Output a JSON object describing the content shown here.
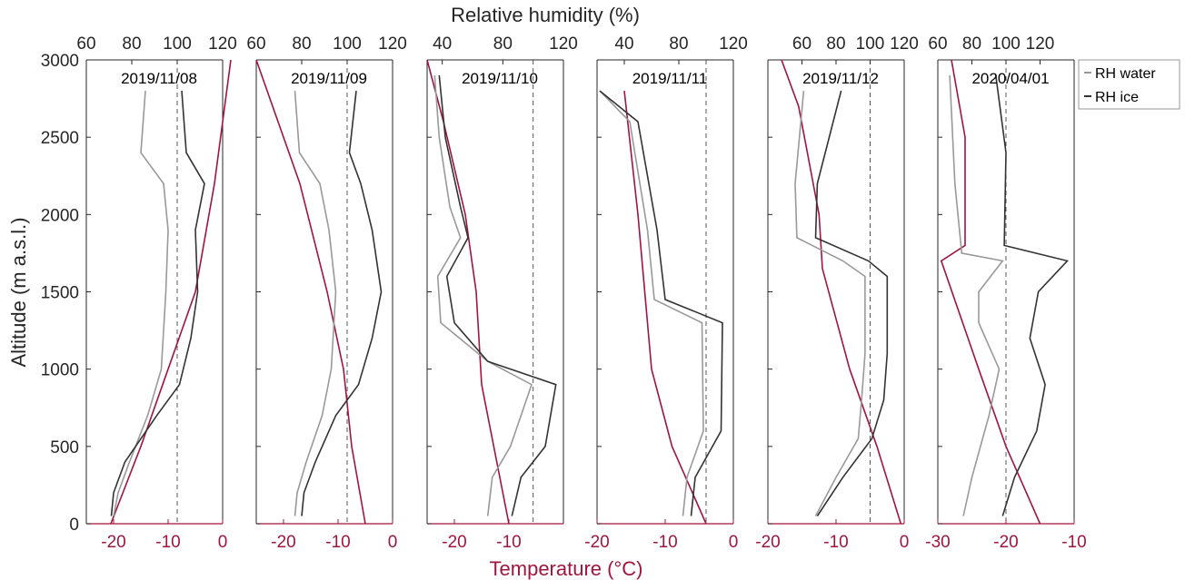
{
  "chart_data": {
    "type": "line",
    "top_axis_label": "Relative humidity (%)",
    "bottom_axis_label": "Temperature (°C)",
    "y_label": "Altitude (m a.s.l.)",
    "y_range": [
      0,
      3000
    ],
    "y_ticks": [
      0,
      500,
      1000,
      1500,
      2000,
      2500,
      3000
    ],
    "y_tick_labels": [
      "0",
      "500",
      "1000",
      "1500",
      "2000",
      "2500",
      "3000"
    ],
    "colors": {
      "rh_water": "#999999",
      "rh_ice": "#333333",
      "temperature": "#a0153e",
      "ice_saturation_line": "#555555"
    },
    "legend": {
      "position": "top-right",
      "entries": [
        "RH water",
        "RH ice"
      ]
    },
    "panels": [
      {
        "date": "2019/11/08",
        "rh_range": [
          60,
          120
        ],
        "rh_ticks": [
          60,
          80,
          100,
          120
        ],
        "rh_tick_labels": [
          "60",
          "80",
          "100",
          "120"
        ],
        "t_range": [
          -25,
          0
        ],
        "t_ticks": [
          -20,
          -10,
          0
        ],
        "t_tick_labels": [
          "-20",
          "-10",
          "0"
        ],
        "ice_saturation_rh": 100,
        "temperature": [
          [
            -20.5,
            0
          ],
          [
            -15,
            500
          ],
          [
            -10,
            1000
          ],
          [
            -5,
            1500
          ],
          [
            -1.5,
            2200
          ],
          [
            1.5,
            3000
          ]
        ],
        "series": [
          {
            "name": "RH water",
            "values": [
              [
                72,
                50
              ],
              [
                74,
                200
              ],
              [
                79,
                400
              ],
              [
                87,
                700
              ],
              [
                93,
                1000
              ],
              [
                95,
                1500
              ],
              [
                96,
                1900
              ],
              [
                94,
                2200
              ],
              [
                84,
                2400
              ],
              [
                86,
                2800
              ]
            ]
          },
          {
            "name": "RH ice",
            "values": [
              [
                71,
                50
              ],
              [
                72,
                200
              ],
              [
                77,
                400
              ],
              [
                91,
                700
              ],
              [
                101,
                900
              ],
              [
                106,
                1200
              ],
              [
                109,
                1500
              ],
              [
                108,
                1900
              ],
              [
                112,
                2200
              ],
              [
                104,
                2400
              ],
              [
                102,
                2800
              ]
            ]
          }
        ]
      },
      {
        "date": "2019/11/09",
        "rh_range": [
          60,
          120
        ],
        "rh_ticks": [
          60,
          80,
          100,
          120
        ],
        "rh_tick_labels": [
          "60",
          "80",
          "100",
          "120"
        ],
        "t_range": [
          -25,
          0
        ],
        "t_ticks": [
          -20,
          -10,
          0
        ],
        "t_tick_labels": [
          "-20",
          "-10",
          "0"
        ],
        "ice_saturation_rh": 100,
        "temperature": [
          [
            -5,
            0
          ],
          [
            -7.5,
            500
          ],
          [
            -9,
            1000
          ],
          [
            -12,
            1500
          ],
          [
            -17,
            2200
          ],
          [
            -25,
            3000
          ]
        ],
        "series": [
          {
            "name": "RH water",
            "values": [
              [
                77,
                50
              ],
              [
                78,
                200
              ],
              [
                82,
                400
              ],
              [
                89,
                700
              ],
              [
                93,
                1000
              ],
              [
                95,
                1500
              ],
              [
                92,
                1900
              ],
              [
                88,
                2200
              ],
              [
                79,
                2400
              ],
              [
                77,
                2800
              ]
            ]
          },
          {
            "name": "RH ice",
            "values": [
              [
                80,
                50
              ],
              [
                81,
                200
              ],
              [
                86,
                400
              ],
              [
                95,
                700
              ],
              [
                105,
                900
              ],
              [
                111,
                1200
              ],
              [
                115,
                1500
              ],
              [
                111,
                1900
              ],
              [
                106,
                2200
              ],
              [
                101,
                2400
              ],
              [
                104,
                2800
              ]
            ]
          }
        ]
      },
      {
        "date": "2019/11/10",
        "rh_range": [
          30,
          120
        ],
        "rh_ticks": [
          40,
          80,
          120
        ],
        "rh_tick_labels": [
          "40",
          "80",
          "120"
        ],
        "t_range": [
          -25,
          0
        ],
        "t_ticks": [
          -20,
          -10
        ],
        "t_tick_labels": [
          "-20",
          "-10"
        ],
        "ice_saturation_rh": 100,
        "temperature": [
          [
            -10,
            0
          ],
          [
            -15,
            900
          ],
          [
            -16,
            1500
          ],
          [
            -18,
            2000
          ],
          [
            -22,
            2600
          ],
          [
            -25,
            3000
          ]
        ],
        "series": [
          {
            "name": "RH water",
            "values": [
              [
                70,
                50
              ],
              [
                73,
                300
              ],
              [
                85,
                500
              ],
              [
                99,
                900
              ],
              [
                70,
                1050
              ],
              [
                39,
                1300
              ],
              [
                37,
                1600
              ],
              [
                52,
                1850
              ],
              [
                45,
                2050
              ],
              [
                38,
                2500
              ],
              [
                35,
                2900
              ]
            ]
          },
          {
            "name": "RH ice",
            "values": [
              [
                86,
                50
              ],
              [
                92,
                300
              ],
              [
                108,
                500
              ],
              [
                115,
                900
              ],
              [
                70,
                1050
              ],
              [
                48,
                1300
              ],
              [
                43,
                1600
              ],
              [
                57,
                1850
              ],
              [
                52,
                2050
              ],
              [
                42,
                2500
              ],
              [
                38,
                2900
              ]
            ]
          }
        ]
      },
      {
        "date": "2019/11/11",
        "rh_range": [
          20,
          120
        ],
        "rh_ticks": [
          40,
          80,
          120
        ],
        "rh_tick_labels": [
          "40",
          "80",
          "120"
        ],
        "t_range": [
          -20,
          0
        ],
        "t_ticks": [
          -20,
          -10,
          0
        ],
        "t_tick_labels": [
          "-20",
          "-10",
          "0"
        ],
        "ice_saturation_rh": 100,
        "temperature": [
          [
            -4,
            0
          ],
          [
            -9,
            500
          ],
          [
            -12,
            1000
          ],
          [
            -13,
            1500
          ],
          [
            -14,
            2000
          ],
          [
            -16,
            2800
          ]
        ],
        "series": [
          {
            "name": "RH water",
            "values": [
              [
                83,
                50
              ],
              [
                86,
                300
              ],
              [
                98,
                600
              ],
              [
                97,
                1300
              ],
              [
                62,
                1450
              ],
              [
                57,
                1900
              ],
              [
                44,
                2600
              ],
              [
                22,
                2800
              ]
            ]
          },
          {
            "name": "RH ice",
            "values": [
              [
                89,
                50
              ],
              [
                92,
                300
              ],
              [
                111,
                600
              ],
              [
                112,
                1300
              ],
              [
                70,
                1450
              ],
              [
                64,
                1900
              ],
              [
                50,
                2600
              ],
              [
                22,
                2800
              ]
            ]
          }
        ]
      },
      {
        "date": "2019/11/12",
        "rh_range": [
          40,
          120
        ],
        "rh_ticks": [
          60,
          80,
          100,
          120
        ],
        "rh_tick_labels": [
          "60",
          "80",
          "100",
          "120"
        ],
        "t_range": [
          -20,
          0
        ],
        "t_ticks": [
          -20,
          -10,
          0
        ],
        "t_tick_labels": [
          "-20",
          "-10",
          "0"
        ],
        "ice_saturation_rh": 100,
        "temperature": [
          [
            -0.5,
            0
          ],
          [
            -4,
            500
          ],
          [
            -8,
            1000
          ],
          [
            -12,
            1650
          ],
          [
            -12.5,
            2000
          ],
          [
            -15.5,
            2700
          ],
          [
            -18,
            3000
          ]
        ],
        "series": [
          {
            "name": "RH water",
            "values": [
              [
                68,
                50
              ],
              [
                80,
                300
              ],
              [
                93,
                550
              ],
              [
                95,
                800
              ],
              [
                97,
                1100
              ],
              [
                97,
                1600
              ],
              [
                84,
                1700
              ],
              [
                57,
                1850
              ],
              [
                56,
                2200
              ],
              [
                61,
                2800
              ]
            ]
          },
          {
            "name": "RH ice",
            "values": [
              [
                69,
                50
              ],
              [
                84,
                300
              ],
              [
                101,
                550
              ],
              [
                108,
                800
              ],
              [
                110,
                1100
              ],
              [
                110,
                1600
              ],
              [
                99,
                1700
              ],
              [
                68,
                1850
              ],
              [
                69,
                2200
              ],
              [
                83,
                2800
              ]
            ]
          }
        ]
      },
      {
        "date": "2020/04/01",
        "rh_range": [
          60,
          140
        ],
        "rh_ticks": [
          60,
          80,
          100,
          120
        ],
        "rh_tick_labels": [
          "60",
          "80",
          "100",
          "120"
        ],
        "t_range": [
          -30,
          -10
        ],
        "t_ticks": [
          -30,
          -20,
          -10
        ],
        "t_tick_labels": [
          "-30",
          "-20",
          "-10"
        ],
        "ice_saturation_rh": 100,
        "temperature": [
          [
            -15,
            0
          ],
          [
            -20,
            500
          ],
          [
            -24,
            1000
          ],
          [
            -29.5,
            1700
          ],
          [
            -26,
            1800
          ],
          [
            -26,
            2500
          ],
          [
            -28,
            3000
          ]
        ],
        "series": [
          {
            "name": "RH water",
            "values": [
              [
                75,
                50
              ],
              [
                80,
                300
              ],
              [
                90,
                700
              ],
              [
                96,
                1000
              ],
              [
                84,
                1300
              ],
              [
                84,
                1500
              ],
              [
                98,
                1700
              ],
              [
                74,
                1750
              ],
              [
                70,
                2200
              ],
              [
                67,
                2900
              ]
            ]
          },
          {
            "name": "RH ice",
            "values": [
              [
                98,
                50
              ],
              [
                105,
                300
              ],
              [
                118,
                600
              ],
              [
                123,
                900
              ],
              [
                114,
                1200
              ],
              [
                119,
                1500
              ],
              [
                136,
                1700
              ],
              [
                99,
                1800
              ],
              [
                100,
                2400
              ],
              [
                94,
                2900
              ]
            ]
          }
        ]
      }
    ]
  }
}
